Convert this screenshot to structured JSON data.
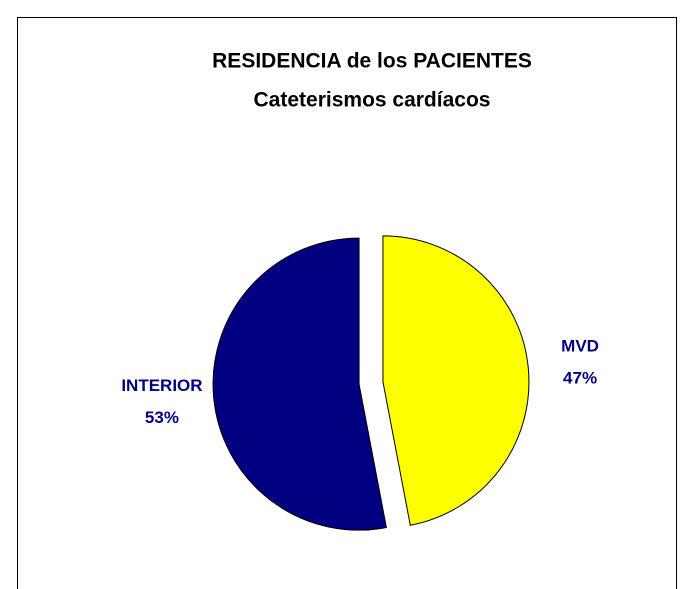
{
  "chart_data": {
    "type": "pie",
    "title": "RESIDENCIA de los PACIENTES",
    "subtitle": "Cateterismos cardíacos",
    "categories": [
      "MVD",
      "INTERIOR"
    ],
    "values": [
      47,
      53
    ],
    "value_labels": [
      "47%",
      "53%"
    ],
    "colors": [
      "#ffff00",
      "#000080"
    ]
  }
}
